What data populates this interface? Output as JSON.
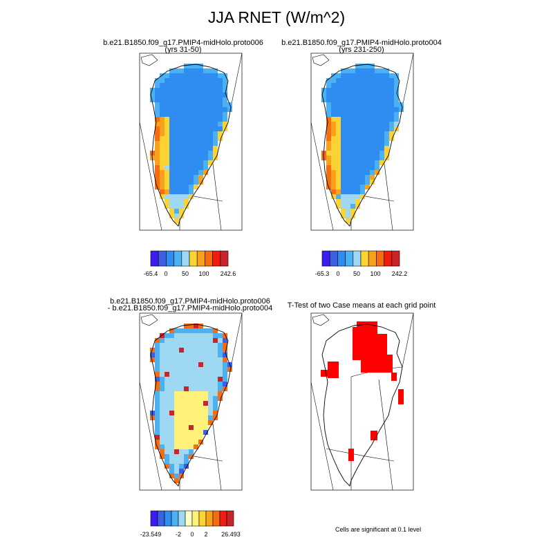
{
  "figure": {
    "title": "JJA RNET (W/m^2)",
    "footnote": "Cells are significant at 0.1 level"
  },
  "colors": {
    "rnet_scale": [
      "#3a1cf0",
      "#3d5fe0",
      "#2f8cf0",
      "#4cb1f2",
      "#9fd8f3",
      "#fbd335",
      "#f8a11b",
      "#f66d10",
      "#ef1c12",
      "#c8242a"
    ],
    "diff_scale": [
      "#3a1cf0",
      "#3d5fe0",
      "#2f8cf0",
      "#4cb1f2",
      "#9fd8f3",
      "#ffffc8",
      "#fff27a",
      "#fbd335",
      "#f8a11b",
      "#f66d10",
      "#ef1c12",
      "#c8242a"
    ],
    "significant": "#ff0000"
  },
  "chart_data": [
    {
      "type": "heatmap",
      "title_line1": "b.e21.B1850.f09_g17.PMIP4-midHolo.proto006",
      "title_line2": "(yrs 31-50)",
      "colorbar_ticks": [
        "-65.4",
        "0",
        "50",
        "100",
        "242.6"
      ],
      "colorbar_min": -65.4,
      "colorbar_max": 242.6,
      "region": "Greenland"
    },
    {
      "type": "heatmap",
      "title_line1": "b.e21.B1850.f09_g17.PMIP4-midHolo.proto004",
      "title_line2": "(yrs 231-250)",
      "colorbar_ticks": [
        "-65.3",
        "0",
        "50",
        "100",
        "242.2"
      ],
      "colorbar_min": -65.3,
      "colorbar_max": 242.2,
      "region": "Greenland"
    },
    {
      "type": "heatmap",
      "title_line1": "b.e21.B1850.f09_g17.PMIP4-midHolo.proto006",
      "title_line2": "- b.e21.B1850.f09_g17.PMIP4-midHolo.proto004",
      "colorbar_ticks": [
        "-23.549",
        "-2",
        "0",
        "2",
        "26.493"
      ],
      "colorbar_min": -23.549,
      "colorbar_max": 26.493,
      "region": "Greenland"
    },
    {
      "type": "heatmap",
      "title_line1": "T-Test of two Case means at each grid point",
      "region": "Greenland",
      "significant_regions": [
        "north-central interior",
        "northwest margin",
        "east coast",
        "southeast coast"
      ]
    }
  ]
}
